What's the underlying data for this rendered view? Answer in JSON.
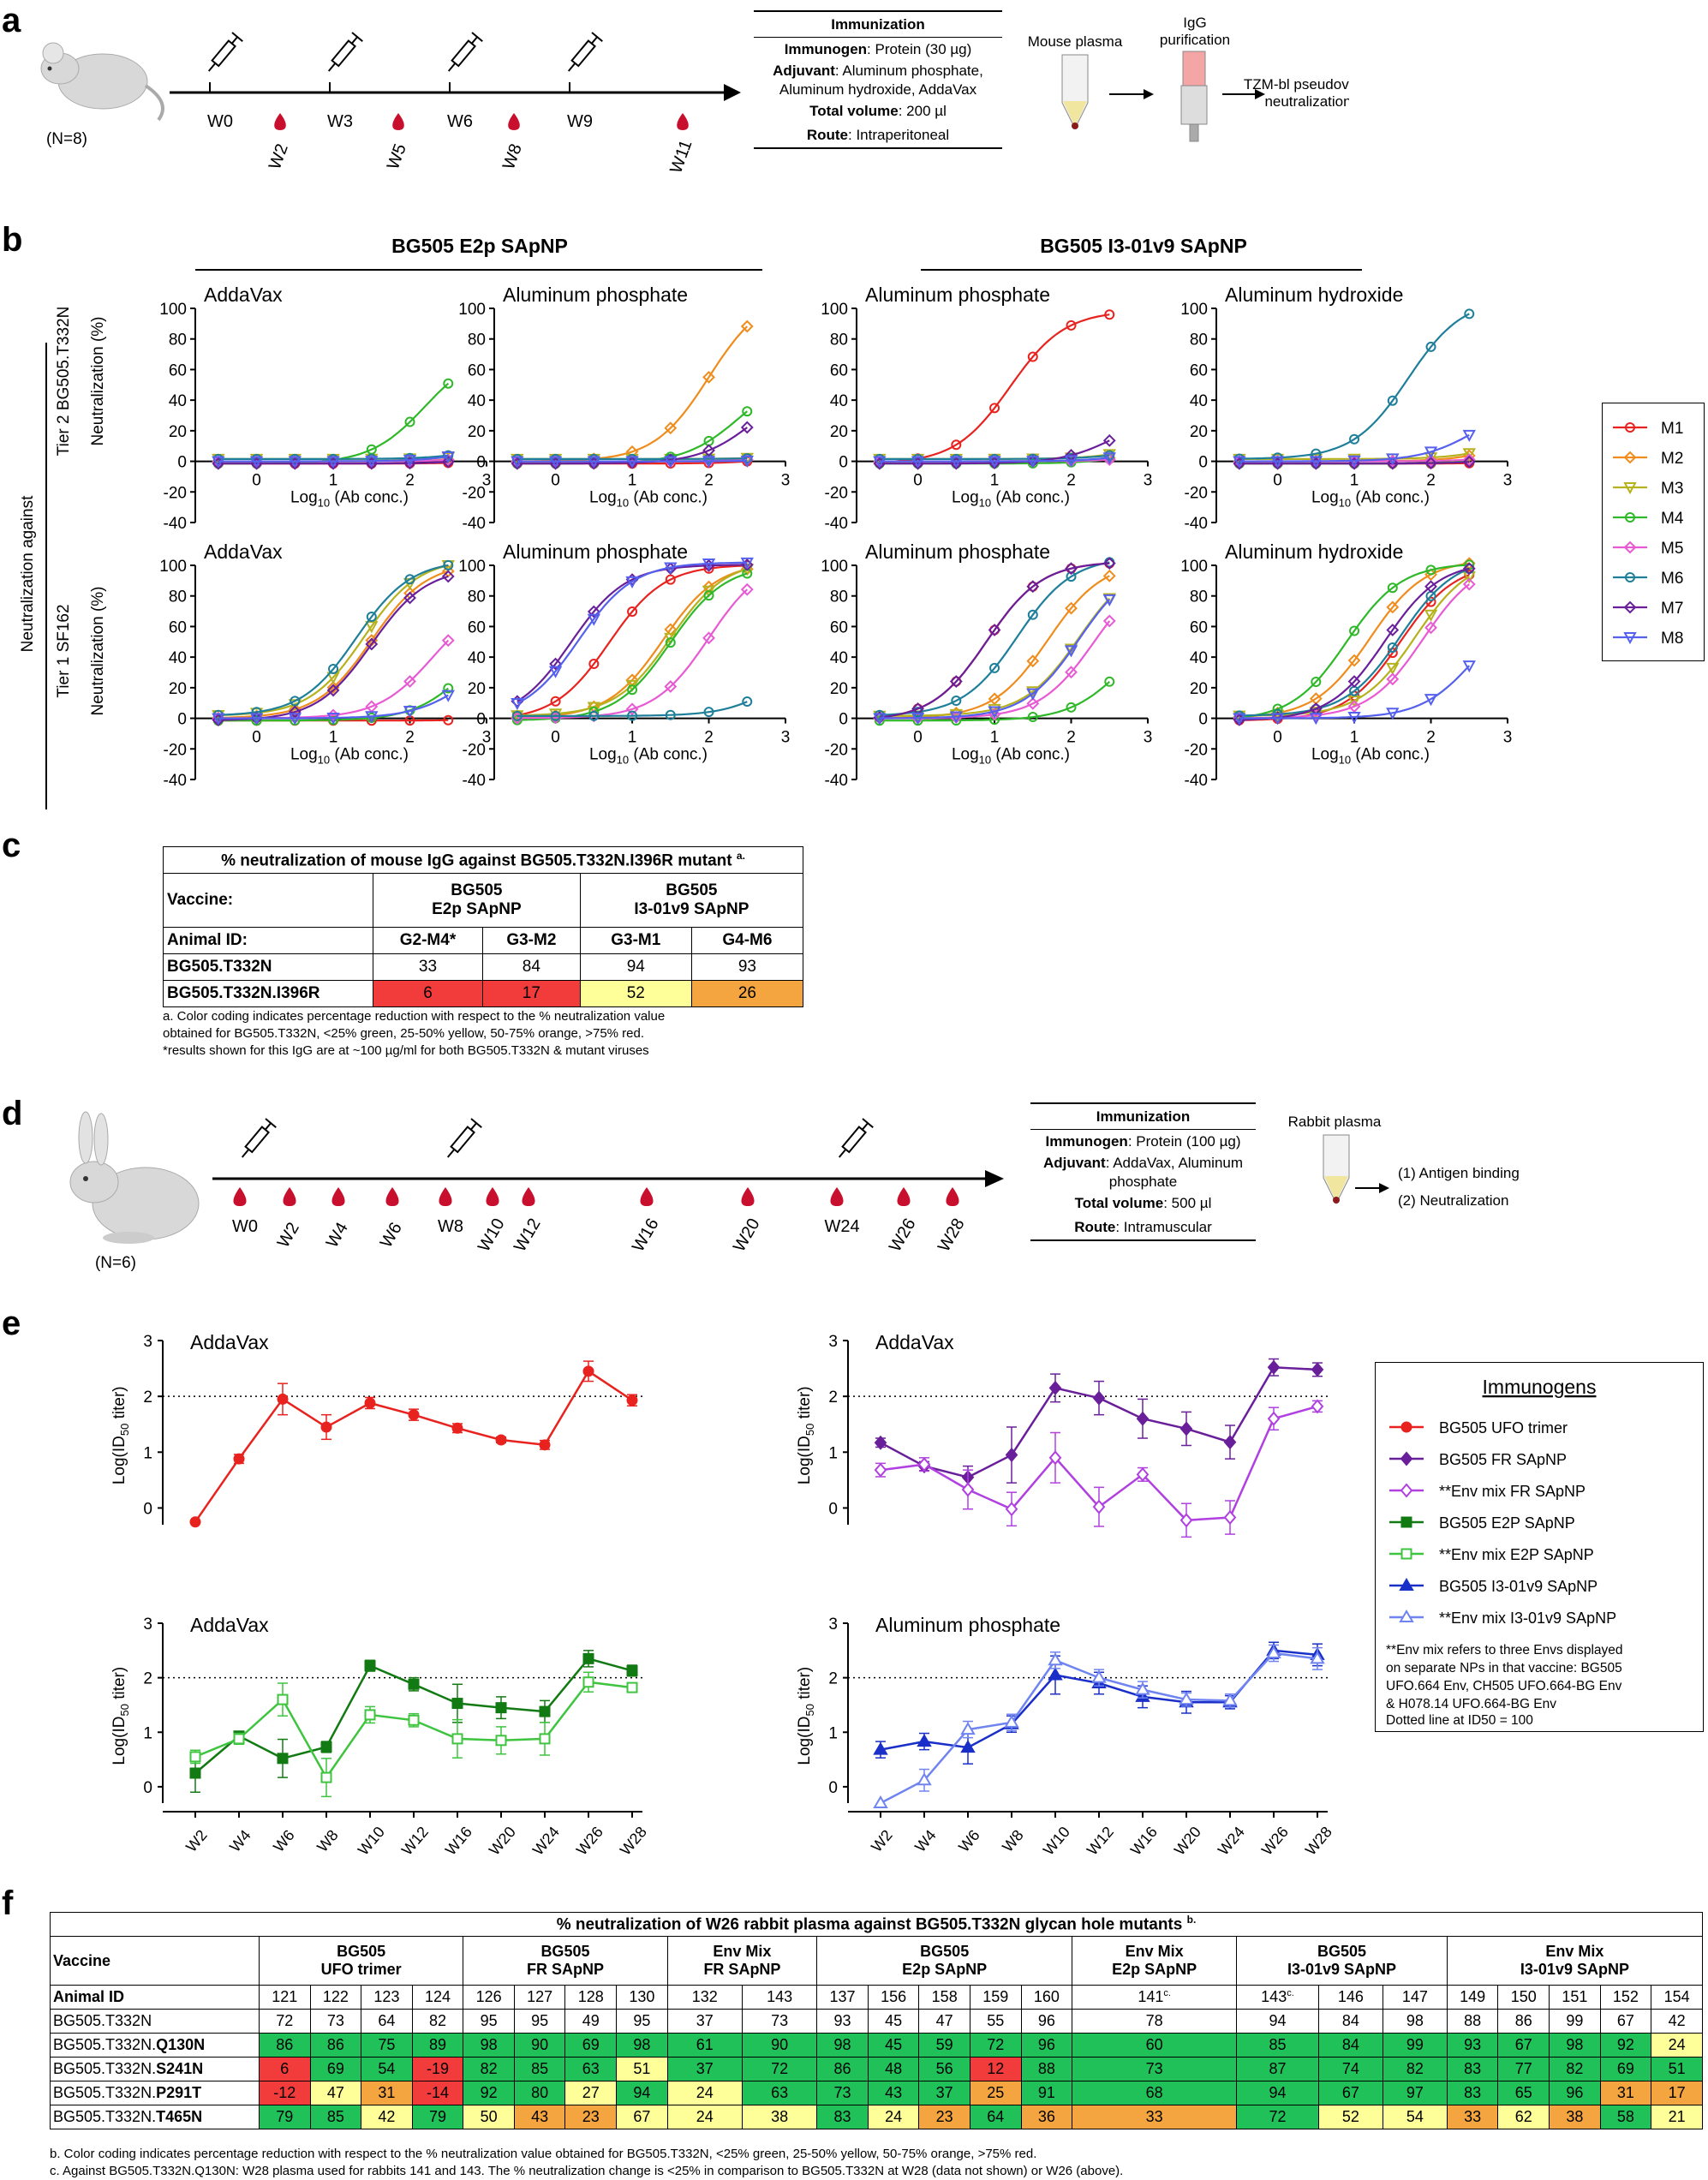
{
  "panels": {
    "a": "a",
    "b": "b",
    "c": "c",
    "d": "d",
    "e": "e",
    "f": "f"
  },
  "a": {
    "animal_count": "(N=8)",
    "weeks_top": [
      "W0",
      "W3",
      "W6",
      "W9"
    ],
    "weeks_bottom": [
      "W2",
      "W5",
      "W8",
      "W11"
    ],
    "immunization": {
      "title": "Immunization",
      "immunogen_label": "Immunogen",
      "immunogen_value": ": Protein (30 µg)",
      "adjuvant_label": "Adjuvant",
      "adjuvant_value": ": Aluminum phosphate, Aluminum hydroxide, AddaVax",
      "volume_label": "Total volume",
      "volume_value": ": 200 µl",
      "route_label": "Route",
      "route_value": ": Intraperitoneal"
    },
    "flow": {
      "plasma": "Mouse plasma",
      "igg1": "IgG",
      "igg2": "purification",
      "assay1": "TZM-bl pseudovirus",
      "assay2": "neutralization"
    }
  },
  "b": {
    "group_left": "BG505 E2p SApNP",
    "group_right": "BG505 I3-01v9 SApNP",
    "outer_label": "Neutralization against",
    "row_labels": [
      "Tier 2 BG505.T332N",
      "Tier 1 SF162"
    ],
    "ylabel": "Neutralization (%)",
    "xlabel": "Log10 (Ab conc.)",
    "titles_top": [
      "AddaVax",
      "Aluminum phosphate",
      "Aluminum phosphate",
      "Aluminum hydroxide"
    ],
    "titles_bottom": [
      "AddaVax",
      "Aluminum phosphate",
      "Aluminum phosphate",
      "Aluminum hydroxide"
    ],
    "legend": [
      "M1",
      "M2",
      "M3",
      "M4",
      "M5",
      "M6",
      "M7",
      "M8"
    ]
  },
  "c": {
    "title": "% neutralization of mouse IgG against BG505.T332N.I396R mutant",
    "title_sup": "a.",
    "vaccine_label": "Vaccine:",
    "vaccine1": "BG505",
    "vaccine1b": "E2p SApNP",
    "vaccine2": "BG505",
    "vaccine2b": "I3-01v9 SApNP",
    "animal_label": "Animal ID:",
    "ids": [
      "G2-M4*",
      "G3-M2",
      "G3-M1",
      "G4-M6"
    ],
    "row1_label": "BG505.T332N",
    "row1": [
      "33",
      "84",
      "94",
      "93"
    ],
    "row2_label": "BG505.T332N.I396R",
    "row2": [
      "6",
      "17",
      "52",
      "26"
    ],
    "note1": "a. Color coding indicates percentage reduction with respect to the % neutralization value",
    "note2": "obtained for BG505.T332N, <25% green, 25-50% yellow, 50-75% orange, >75% red.",
    "note3": "*results shown for this IgG are at ~100 µg/ml for both BG505.T332N & mutant viruses"
  },
  "d": {
    "animal_count": "(N=6)",
    "weeks": [
      "W0",
      "W2",
      "W4",
      "W6",
      "W8",
      "W10",
      "W12",
      "W16",
      "W20",
      "W24",
      "W26",
      "W28"
    ],
    "immunization": {
      "title": "Immunization",
      "immunogen_label": "Immunogen",
      "immunogen_value": ": Protein (100 µg)",
      "adjuvant_label": "Adjuvant",
      "adjuvant_value": ": AddaVax, Aluminum phosphate",
      "volume_label": "Total volume",
      "volume_value": ": 500 µl",
      "route_label": "Route",
      "route_value": ": Intramuscular"
    },
    "plasma": "Rabbit plasma",
    "out1": "(1) Antigen binding",
    "out2": "(2) Neutralization"
  },
  "e": {
    "ylabel": "Log(ID50 titer)",
    "weeks": [
      "W2",
      "W4",
      "W6",
      "W8",
      "W10",
      "W12",
      "W16",
      "W20",
      "W24",
      "W26",
      "W28"
    ],
    "titles": [
      "AddaVax",
      "AddaVax",
      "AddaVax",
      "Aluminum phosphate"
    ],
    "legend_title": "Immunogens",
    "legend": [
      "BG505 UFO trimer",
      "BG505 FR SApNP",
      "**Env mix FR SApNP",
      "BG505 E2P SApNP",
      "**Env mix E2P SApNP",
      "BG505 I3-01v9 SApNP",
      "**Env mix I3-01v9 SApNP"
    ],
    "note1": "**Env mix refers to three Envs displayed",
    "note2": "on separate NPs in that vaccine:  BG505",
    "note3": "UFO.664 Env, CH505 UFO.664-BG Env",
    "note4": "& H078.14 UFO.664-BG Env",
    "note5": "Dotted line at ID50 = 100"
  },
  "chart_data": [
    {
      "type": "line",
      "title": "AddaVax (UFO trimer)",
      "x": [
        "W2",
        "W4",
        "W6",
        "W8",
        "W10",
        "W12",
        "W16",
        "W20",
        "W24",
        "W26",
        "W28"
      ],
      "series": [
        {
          "name": "BG505 UFO trimer",
          "values": [
            -0.25,
            0.88,
            1.95,
            1.45,
            1.88,
            1.67,
            1.43,
            1.22,
            1.13,
            2.45,
            1.93
          ]
        }
      ],
      "ylim": [
        -0.3,
        3
      ]
    },
    {
      "type": "line",
      "title": "AddaVax (FR SApNP)",
      "x": [
        "W2",
        "W4",
        "W6",
        "W8",
        "W10",
        "W12",
        "W16",
        "W20",
        "W24",
        "W26",
        "W28"
      ],
      "series": [
        {
          "name": "BG505 FR SApNP",
          "values": [
            1.17,
            0.75,
            0.55,
            0.95,
            2.15,
            1.97,
            1.6,
            1.42,
            1.18,
            2.52,
            2.48
          ]
        },
        {
          "name": "**Env mix FR SApNP",
          "values": [
            0.68,
            0.78,
            0.33,
            -0.02,
            0.9,
            0.02,
            0.6,
            -0.22,
            -0.17,
            1.6,
            1.82
          ]
        }
      ],
      "ylim": [
        -0.3,
        3
      ]
    },
    {
      "type": "line",
      "title": "AddaVax (E2P SApNP)",
      "x": [
        "W2",
        "W4",
        "W6",
        "W8",
        "W10",
        "W12",
        "W16",
        "W20",
        "W24",
        "W26",
        "W28"
      ],
      "series": [
        {
          "name": "BG505 E2P SApNP",
          "values": [
            0.25,
            0.93,
            0.52,
            0.73,
            2.22,
            1.88,
            1.53,
            1.45,
            1.38,
            2.35,
            2.13
          ]
        },
        {
          "name": "**Env mix E2P SApNP",
          "values": [
            0.55,
            0.88,
            1.6,
            0.17,
            1.32,
            1.22,
            0.88,
            0.85,
            0.88,
            1.92,
            1.82
          ]
        }
      ],
      "ylim": [
        -0.3,
        3
      ]
    },
    {
      "type": "line",
      "title": "Aluminum phosphate (I3-01v9 SApNP)",
      "x": [
        "W2",
        "W4",
        "W6",
        "W8",
        "W10",
        "W12",
        "W16",
        "W20",
        "W24",
        "W26",
        "W28"
      ],
      "series": [
        {
          "name": "BG505 I3-01v9 SApNP",
          "values": [
            0.68,
            0.83,
            0.72,
            1.15,
            2.05,
            1.9,
            1.65,
            1.55,
            1.55,
            2.5,
            2.42
          ]
        },
        {
          "name": "**Env mix I3-01v9 SApNP",
          "values": [
            -0.3,
            0.12,
            1.05,
            1.18,
            2.32,
            2.0,
            1.78,
            1.6,
            1.58,
            2.45,
            2.35
          ]
        }
      ],
      "ylim": [
        -0.3,
        3
      ]
    }
  ],
  "f": {
    "title": "% neutralization of W26 rabbit plasma against BG505.T332N glycan hole mutants",
    "title_sup": "b.",
    "vaccine_label": "Vaccine",
    "animal_label": "Animal ID",
    "groups": [
      {
        "l1": "BG505",
        "l2": "UFO trimer",
        "span": 4
      },
      {
        "l1": "BG505",
        "l2": "FR SApNP",
        "span": 4
      },
      {
        "l1": "Env Mix",
        "l2": "FR SApNP",
        "span": 2
      },
      {
        "l1": "BG505",
        "l2": "E2p SApNP",
        "span": 5
      },
      {
        "l1": "Env Mix",
        "l2": "E2p SApNP",
        "span": 1
      },
      {
        "l1": "BG505",
        "l2": "I3-01v9 SApNP",
        "span": 3
      },
      {
        "l1": "Env Mix",
        "l2": "I3-01v9 SApNP",
        "span": 5
      }
    ],
    "ids": [
      "121",
      "122",
      "123",
      "124",
      "126",
      "127",
      "128",
      "130",
      "132",
      "143",
      "137",
      "156",
      "158",
      "159",
      "160",
      "141",
      "143",
      "146",
      "147",
      "149",
      "150",
      "151",
      "152",
      "154"
    ],
    "id_sups": [
      "",
      "",
      "",
      "",
      "",
      "",
      "",
      "",
      "",
      "",
      "",
      "",
      "",
      "",
      "",
      "c.",
      "c.",
      "",
      "",
      "",
      "",
      "",
      "",
      ""
    ],
    "rows": [
      {
        "label": "BG505.T332N",
        "mut": "",
        "values": [
          "72",
          "73",
          "64",
          "82",
          "95",
          "95",
          "49",
          "95",
          "37",
          "73",
          "93",
          "45",
          "47",
          "55",
          "96",
          "78",
          "94",
          "84",
          "98",
          "88",
          "86",
          "99",
          "67",
          "42"
        ],
        "colors": [
          "",
          "",
          "",
          "",
          "",
          "",
          "",
          "",
          "",
          "",
          "",
          "",
          "",
          "",
          "",
          "",
          "",
          "",
          "",
          "",
          "",
          "",
          "",
          ""
        ]
      },
      {
        "label": "BG505.T332N.",
        "mut": "Q130N",
        "values": [
          "86",
          "86",
          "75",
          "89",
          "98",
          "90",
          "69",
          "98",
          "61",
          "90",
          "98",
          "45",
          "59",
          "72",
          "96",
          "60",
          "85",
          "84",
          "99",
          "93",
          "67",
          "98",
          "92",
          "24"
        ],
        "colors": [
          "g",
          "g",
          "g",
          "g",
          "g",
          "g",
          "g",
          "g",
          "g",
          "g",
          "g",
          "g",
          "g",
          "g",
          "g",
          "g",
          "g",
          "g",
          "g",
          "g",
          "g",
          "g",
          "g",
          "y"
        ]
      },
      {
        "label": "BG505.T332N.",
        "mut": "S241N",
        "values": [
          "6",
          "69",
          "54",
          "-19",
          "82",
          "85",
          "63",
          "51",
          "37",
          "72",
          "86",
          "48",
          "56",
          "12",
          "88",
          "73",
          "87",
          "74",
          "82",
          "83",
          "77",
          "82",
          "69",
          "51"
        ],
        "colors": [
          "r",
          "g",
          "g",
          "r",
          "g",
          "g",
          "g",
          "y",
          "g",
          "g",
          "g",
          "g",
          "g",
          "r",
          "g",
          "g",
          "g",
          "g",
          "g",
          "g",
          "g",
          "g",
          "g",
          "g"
        ]
      },
      {
        "label": "BG505.T332N.",
        "mut": "P291T",
        "values": [
          "-12",
          "47",
          "31",
          "-14",
          "92",
          "80",
          "27",
          "94",
          "24",
          "63",
          "73",
          "43",
          "37",
          "25",
          "91",
          "68",
          "94",
          "67",
          "97",
          "83",
          "65",
          "96",
          "31",
          "17"
        ],
        "colors": [
          "r",
          "y",
          "o",
          "r",
          "g",
          "g",
          "y",
          "g",
          "y",
          "g",
          "g",
          "g",
          "g",
          "o",
          "g",
          "g",
          "g",
          "g",
          "g",
          "g",
          "g",
          "g",
          "o",
          "o"
        ]
      },
      {
        "label": "BG505.T332N.",
        "mut": "T465N",
        "values": [
          "79",
          "85",
          "42",
          "79",
          "50",
          "43",
          "23",
          "67",
          "24",
          "38",
          "83",
          "24",
          "23",
          "64",
          "36",
          "33",
          "72",
          "52",
          "54",
          "33",
          "62",
          "38",
          "58",
          "21"
        ],
        "colors": [
          "g",
          "g",
          "y",
          "g",
          "y",
          "o",
          "o",
          "y",
          "y",
          "y",
          "g",
          "y",
          "o",
          "g",
          "o",
          "o",
          "g",
          "y",
          "y",
          "o",
          "y",
          "o",
          "g",
          "y"
        ]
      }
    ],
    "note_b": "b. Color coding indicates percentage reduction with respect to the % neutralization value obtained for BG505.T332N, <25% green, 25-50% yellow,  50-75% orange, >75% red.",
    "note_c": "c. Against BG505.T332N.Q130N: W28 plasma used for rabbits 141 and 143.  The % neutralization change is <25% in comparison to BG505.T332N at W28 (data not shown) or W26 (above)."
  },
  "colors": {
    "M1": "#e8231f",
    "M2": "#f08c1c",
    "M3": "#b5b21e",
    "M4": "#2fb829",
    "M5": "#e85ad4",
    "M6": "#1e7f9a",
    "M7": "#6a1f9a",
    "M8": "#5560ee",
    "ufo": "#e8231f",
    "fr": "#6a1f9a",
    "frmix": "#b040e0",
    "e2p": "#127a12",
    "e2pmix": "#3ec43e",
    "i3": "#1a2fc8",
    "i3mix": "#6f84f0",
    "green": "#21c15a",
    "yellow": "#ffff99",
    "orange": "#f4a540",
    "red": "#f23c3c"
  }
}
